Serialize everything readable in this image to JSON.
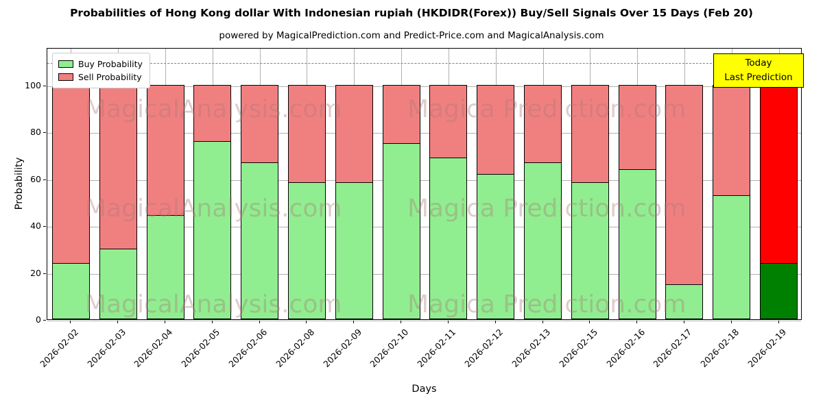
{
  "title": "Probabilities of Hong Kong dollar With Indonesian rupiah (HKDIDR(Forex)) Buy/Sell Signals Over 15 Days (Feb 20)",
  "subtitle": "powered by MagicalPrediction.com and Predict-Price.com and MagicalAnalysis.com",
  "annotation_box": {
    "line1": "Today",
    "line2": "Last Prediction",
    "bg": "#ffff00"
  },
  "watermarks": [
    "MagicalAnalysis.com",
    "Magica Prediction.com"
  ],
  "chart_data": {
    "type": "bar",
    "stacked": true,
    "title": "Probabilities of Hong Kong dollar With Indonesian rupiah (HKDIDR(Forex)) Buy/Sell Signals Over 15 Days (Feb 20)",
    "xlabel": "Days",
    "ylabel": "Probability",
    "categories": [
      "2026-02-02",
      "2026-02-03",
      "2026-02-04",
      "2026-02-05",
      "2026-02-06",
      "2026-02-08",
      "2026-02-09",
      "2026-02-10",
      "2026-02-11",
      "2026-02-12",
      "2026-02-13",
      "2026-02-15",
      "2026-02-16",
      "2026-02-17",
      "2026-02-18",
      "2026-02-19"
    ],
    "series": [
      {
        "name": "Buy Probability",
        "color": "#90ee90",
        "last_bar_color": "#008000",
        "values": [
          24,
          30,
          44.5,
          76,
          67,
          58.5,
          58.5,
          75,
          69,
          62,
          67,
          58.5,
          64,
          15,
          53,
          24
        ]
      },
      {
        "name": "Sell Probability",
        "color": "#f08080",
        "last_bar_color": "#ff0000",
        "values": [
          76,
          70,
          55.5,
          24,
          33,
          41.5,
          41.5,
          25,
          31,
          38,
          33,
          41.5,
          36,
          85,
          47,
          76
        ]
      }
    ],
    "yticks": [
      0,
      20,
      40,
      60,
      80,
      100
    ],
    "ylim": [
      0,
      116
    ],
    "dashed_line_y": 110,
    "grid": true,
    "legend_position": "upper left"
  }
}
